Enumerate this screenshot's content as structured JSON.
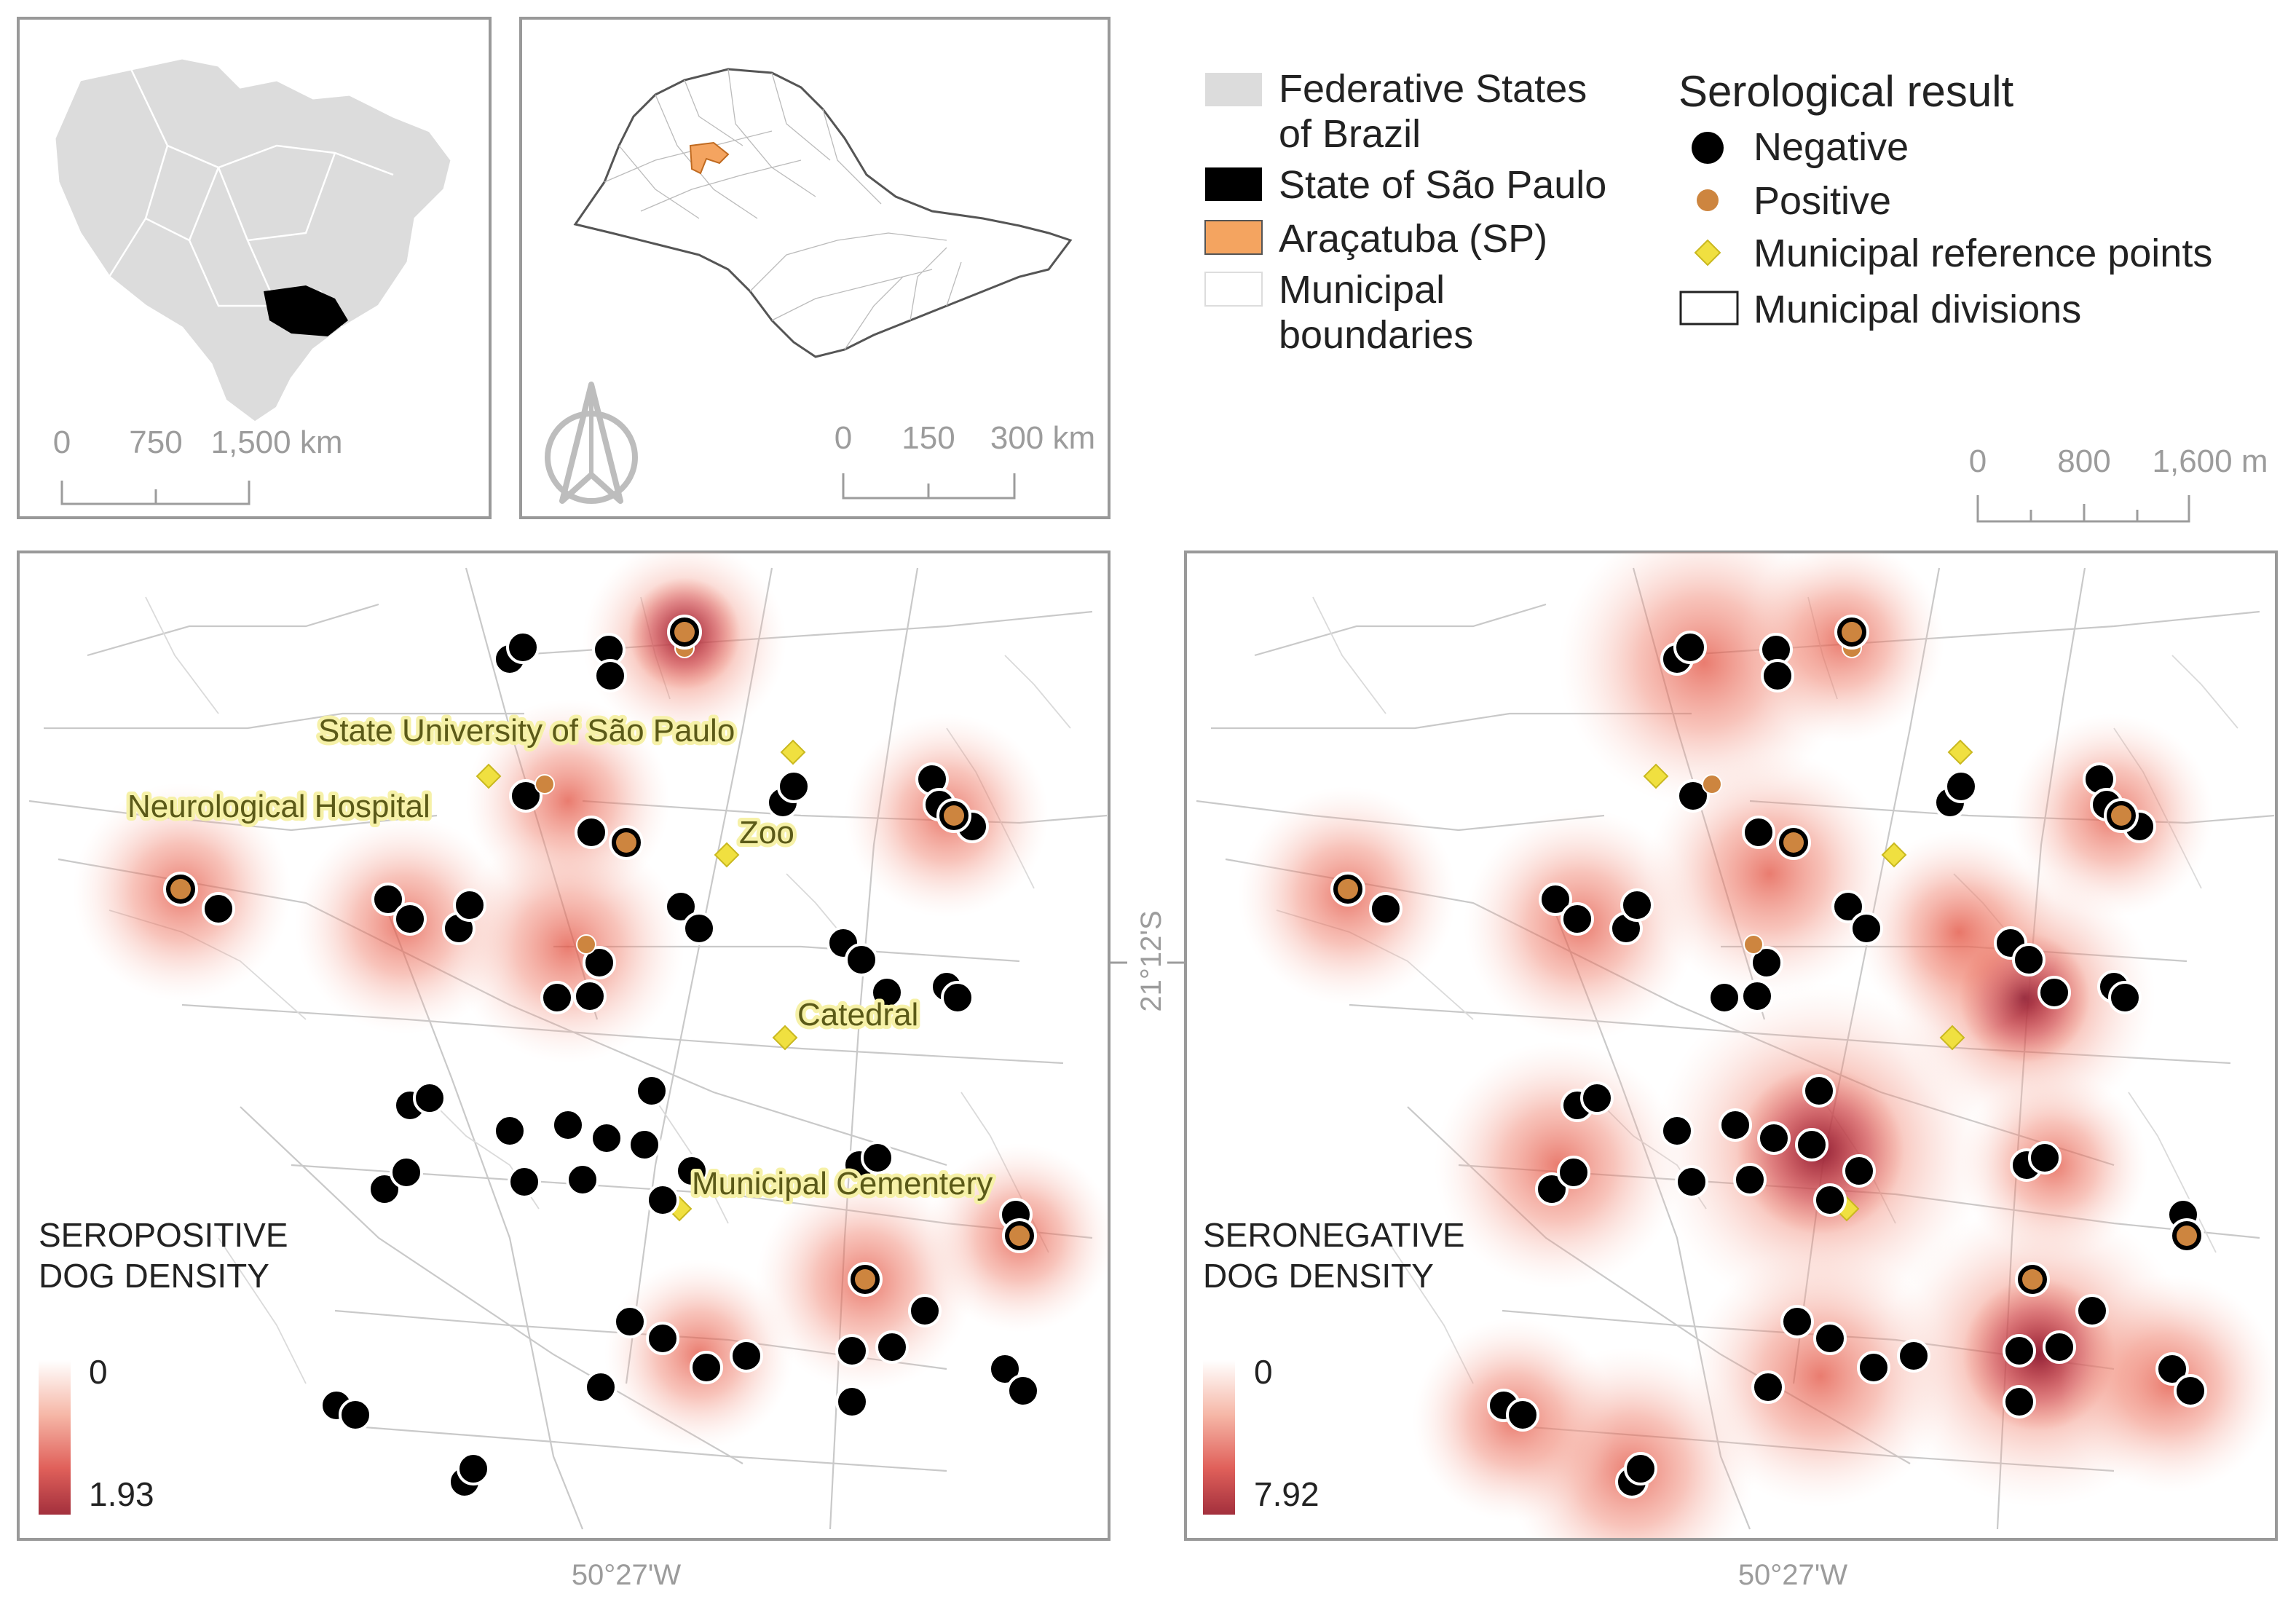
{
  "inset_brazil": {
    "scale": {
      "ticks": [
        "0",
        "750",
        "1,500 km"
      ]
    }
  },
  "inset_sp": {
    "scale": {
      "ticks": [
        "0",
        "150",
        "300 km"
      ]
    },
    "north_arrow_icon": "north-arrow-icon"
  },
  "legend_boundaries": {
    "items": [
      {
        "label_lines": [
          "Federative States",
          "of Brazil"
        ],
        "swatch": "#dcdcdc"
      },
      {
        "label_lines": [
          "State of São Paulo"
        ],
        "swatch": "#000000"
      },
      {
        "label_lines": [
          "Araçatuba (SP)"
        ],
        "swatch": "#f4a460"
      },
      {
        "label_lines": [
          "Municipal",
          "boundaries"
        ],
        "swatch": "#ffffff"
      }
    ]
  },
  "legend_serology": {
    "title": "Serological result",
    "items": [
      {
        "label": "Negative",
        "symbol": "black-circle"
      },
      {
        "label": "Positive",
        "symbol": "orange-circle"
      },
      {
        "label": "Municipal reference points",
        "symbol": "yellow-diamond"
      },
      {
        "label": "Municipal divisions",
        "symbol": "white-rectangle"
      }
    ]
  },
  "main_scale": {
    "ticks": [
      "0",
      "800",
      "1,600 m"
    ]
  },
  "coords": {
    "longitude": "50°27'W",
    "latitude": "21°12'S"
  },
  "left_map": {
    "density_title_lines": [
      "SEROPOSITIVE",
      "DOG DENSITY"
    ],
    "density_min": "0",
    "density_max": "1.93",
    "reference_labels": [
      "State University of São Paulo",
      "Neurological Hospital",
      "Zoo",
      "Catedral",
      "Municipal Cementery"
    ]
  },
  "right_map": {
    "density_title_lines": [
      "SERONEGATIVE",
      "DOG DENSITY"
    ],
    "density_min": "0",
    "density_max": "7.92"
  },
  "colors": {
    "negative": "#000000",
    "positive": "#cd853f",
    "reference": "#f0e040",
    "density_low": "#fbe6df",
    "density_high": "#a3303d",
    "states_fill": "#dcdcdc",
    "sao_paulo": "#000000",
    "aracatuba": "#f4a460"
  }
}
